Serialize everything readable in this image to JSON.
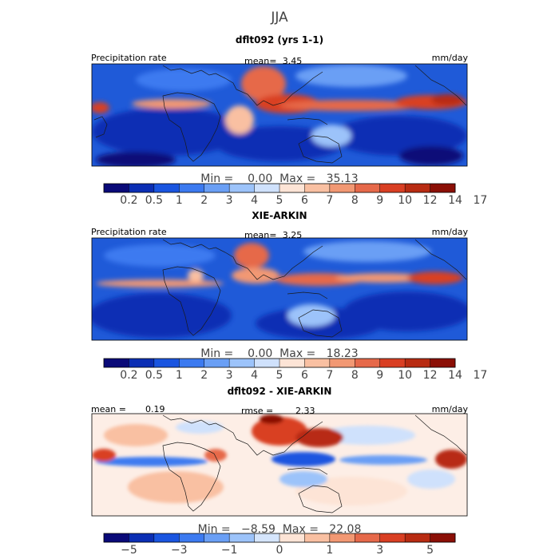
{
  "figure": {
    "season": "JJA"
  },
  "chart_data": [
    {
      "type": "heatmap",
      "title": "dflt092 (yrs 1-1)",
      "left_label": "Precipitation rate",
      "center_label": "mean=",
      "center_value": "3.45",
      "units": "mm/day",
      "minmax_text": "Min =    0.00  Max =   35.13",
      "colorbar": {
        "colors": [
          "#0a0a78",
          "#0b2eb4",
          "#1a55e0",
          "#3c7af0",
          "#6a9ff5",
          "#9cc3fa",
          "#cfe1fc",
          "#fde4d6",
          "#f9c0a2",
          "#f29873",
          "#e6694a",
          "#d93f23",
          "#b82b12",
          "#8b0f06"
        ],
        "tick_labels": [
          "0.2",
          "0.5",
          "1",
          "2",
          "3",
          "4",
          "5",
          "6",
          "7",
          "8",
          "9",
          "10",
          "12",
          "14",
          "17"
        ]
      }
    },
    {
      "type": "heatmap",
      "title": "XIE-ARKIN",
      "left_label": "Precipitation rate",
      "center_label": "mean=",
      "center_value": "3.25",
      "units": "mm/day",
      "minmax_text": "Min =    0.00  Max =   18.23",
      "colorbar": {
        "colors": [
          "#0a0a78",
          "#0b2eb4",
          "#1a55e0",
          "#3c7af0",
          "#6a9ff5",
          "#9cc3fa",
          "#cfe1fc",
          "#fde4d6",
          "#f9c0a2",
          "#f29873",
          "#e6694a",
          "#d93f23",
          "#b82b12",
          "#8b0f06"
        ],
        "tick_labels": [
          "0.2",
          "0.5",
          "1",
          "2",
          "3",
          "4",
          "5",
          "6",
          "7",
          "8",
          "9",
          "10",
          "12",
          "14",
          "17"
        ]
      }
    },
    {
      "type": "heatmap",
      "title": "dflt092 - XIE-ARKIN",
      "left_label": "mean =",
      "left_value": "0.19",
      "center_label": "rmse =",
      "center_value": "2.33",
      "units": "mm/day",
      "minmax_text": "Min =   −8.59  Max =   22.08",
      "colorbar": {
        "colors": [
          "#0a0a78",
          "#0b2eb4",
          "#1a55e0",
          "#3c7af0",
          "#6a9ff5",
          "#9cc3fa",
          "#d5e5fc",
          "#fde4d6",
          "#f9c0a2",
          "#f29873",
          "#e6694a",
          "#d93f23",
          "#b82b12",
          "#8b0f06"
        ],
        "tick_labels": [
          "−5",
          "−3",
          "−1",
          "0",
          "1",
          "3",
          "5"
        ]
      }
    }
  ]
}
